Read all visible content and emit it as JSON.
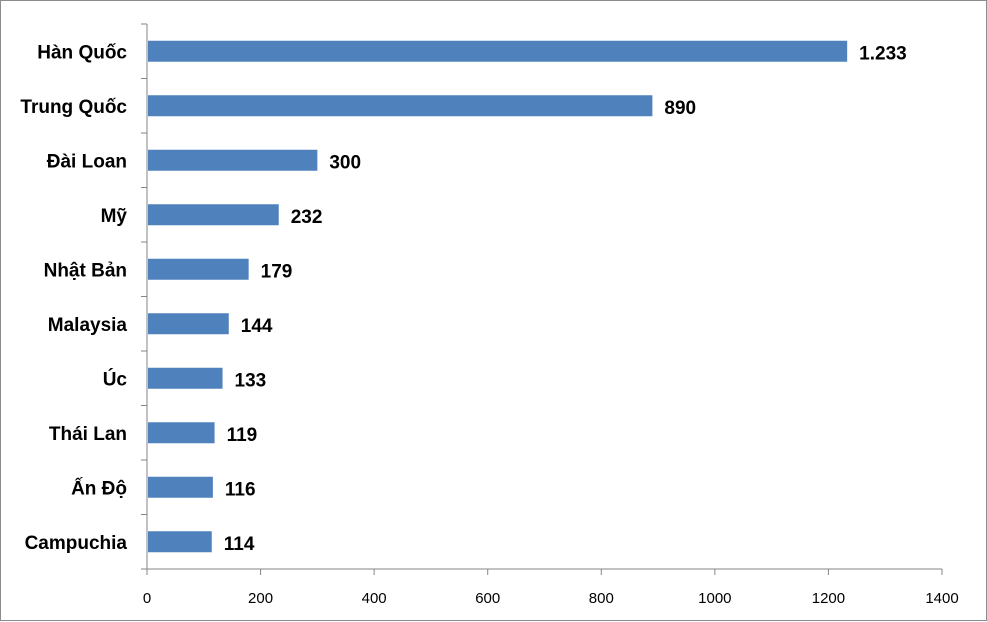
{
  "chart_data": {
    "type": "bar",
    "orientation": "horizontal",
    "title": "",
    "xlabel": "",
    "ylabel": "",
    "categories": [
      "Hàn Quốc",
      "Trung Quốc",
      "Đài Loan",
      "Mỹ",
      "Nhật Bản",
      "Malaysia",
      "Úc",
      "Thái Lan",
      "Ấn Độ",
      "Campuchia"
    ],
    "values": [
      1233,
      890,
      300,
      232,
      179,
      144,
      133,
      119,
      116,
      114
    ],
    "value_labels": [
      "1.233",
      "890",
      "300",
      "232",
      "179",
      "144",
      "133",
      "119",
      "116",
      "114"
    ],
    "xlim": [
      0,
      1400
    ],
    "xticks": [
      0,
      200,
      400,
      600,
      800,
      1000,
      1200,
      1400
    ],
    "xtick_labels": [
      "0",
      "200",
      "400",
      "600",
      "800",
      "1000",
      "1200",
      "1400"
    ],
    "bar_color": "#4f81bd",
    "grid": false,
    "legend": "none"
  }
}
